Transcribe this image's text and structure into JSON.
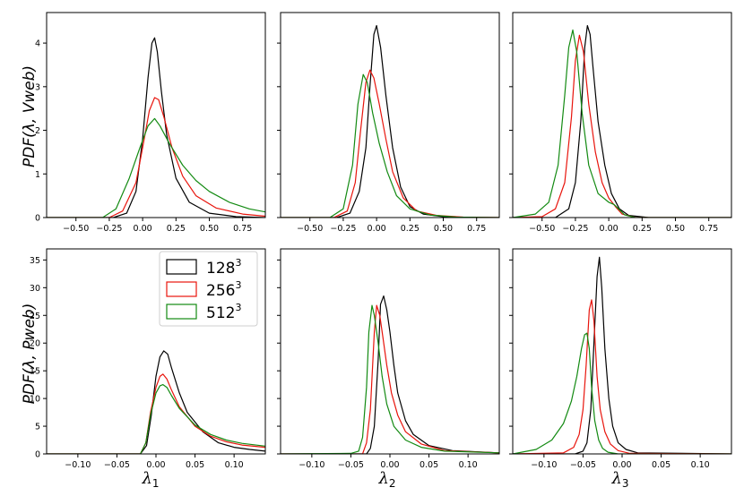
{
  "colors": {
    "128": "#000000",
    "256": "#e8140c",
    "512": "#138a12"
  },
  "legend": {
    "entries": [
      {
        "key": "128",
        "base": "128",
        "exp": "3"
      },
      {
        "key": "256",
        "base": "256",
        "exp": "3"
      },
      {
        "key": "512",
        "base": "512",
        "exp": "3"
      }
    ]
  },
  "row_labels": [
    "PDF(λ, Vweb)",
    "PDF(λ, Pweb)"
  ],
  "col_labels": [
    {
      "sym": "λ",
      "sub": "1"
    },
    {
      "sym": "λ",
      "sub": "2"
    },
    {
      "sym": "λ",
      "sub": "3"
    }
  ],
  "chart_data": [
    {
      "type": "line",
      "title": "",
      "row": 0,
      "col": 0,
      "ylabel": "PDF(λ, Vweb)",
      "xlabel": "",
      "xlim": [
        -0.72,
        0.92
      ],
      "ylim": [
        0,
        4.7
      ],
      "xticks": [
        -0.5,
        -0.25,
        0,
        0.25,
        0.5,
        0.75
      ],
      "xticklabels": [
        "−0.50",
        "−0.25",
        "0.00",
        "0.25",
        "0.50",
        "0.75"
      ],
      "yticks": [
        0,
        1,
        2,
        3,
        4
      ],
      "yticklabels": [
        "0",
        "1",
        "2",
        "3",
        "4"
      ],
      "series": [
        {
          "name": "128³",
          "key": "128",
          "x": [
            -0.72,
            -0.22,
            -0.12,
            -0.05,
            0.0,
            0.04,
            0.07,
            0.09,
            0.11,
            0.14,
            0.18,
            0.25,
            0.35,
            0.5,
            0.7,
            0.92
          ],
          "y": [
            0,
            0,
            0.1,
            0.6,
            1.8,
            3.2,
            4.0,
            4.12,
            3.8,
            2.9,
            1.9,
            0.9,
            0.35,
            0.1,
            0.02,
            0
          ]
        },
        {
          "name": "256³",
          "key": "256",
          "x": [
            -0.72,
            -0.25,
            -0.15,
            -0.05,
            0.0,
            0.05,
            0.09,
            0.12,
            0.16,
            0.22,
            0.3,
            0.4,
            0.55,
            0.75,
            0.92
          ],
          "y": [
            0,
            0,
            0.15,
            0.8,
            1.6,
            2.45,
            2.75,
            2.7,
            2.3,
            1.6,
            0.95,
            0.5,
            0.22,
            0.08,
            0.03
          ]
        },
        {
          "name": "512³",
          "key": "512",
          "x": [
            -0.72,
            -0.3,
            -0.2,
            -0.1,
            -0.02,
            0.04,
            0.09,
            0.13,
            0.2,
            0.3,
            0.4,
            0.5,
            0.65,
            0.8,
            0.92
          ],
          "y": [
            0,
            0,
            0.2,
            0.9,
            1.6,
            2.1,
            2.27,
            2.1,
            1.7,
            1.2,
            0.85,
            0.6,
            0.35,
            0.2,
            0.13
          ]
        }
      ]
    },
    {
      "type": "line",
      "title": "",
      "row": 0,
      "col": 1,
      "ylabel": "",
      "xlabel": "",
      "xlim": [
        -0.72,
        0.92
      ],
      "ylim": [
        0,
        4.7
      ],
      "xticks": [
        -0.5,
        -0.25,
        0,
        0.25,
        0.5,
        0.75
      ],
      "xticklabels": [
        "−0.50",
        "−0.25",
        "0.00",
        "0.25",
        "0.50",
        "0.75"
      ],
      "yticks": [
        0,
        1,
        2,
        3,
        4
      ],
      "yticklabels": [],
      "series": [
        {
          "name": "128³",
          "key": "128",
          "x": [
            -0.72,
            -0.3,
            -0.2,
            -0.13,
            -0.08,
            -0.05,
            -0.02,
            0.0,
            0.03,
            0.07,
            0.12,
            0.18,
            0.25,
            0.35,
            0.5,
            0.7,
            0.92
          ],
          "y": [
            0,
            0,
            0.1,
            0.6,
            1.6,
            3.0,
            4.2,
            4.4,
            3.9,
            2.8,
            1.6,
            0.7,
            0.25,
            0.08,
            0.02,
            0,
            0
          ]
        },
        {
          "name": "256³",
          "key": "256",
          "x": [
            -0.72,
            -0.32,
            -0.22,
            -0.16,
            -0.12,
            -0.08,
            -0.05,
            -0.02,
            0.02,
            0.07,
            0.12,
            0.2,
            0.3,
            0.45,
            0.65,
            0.92
          ],
          "y": [
            0,
            0,
            0.15,
            0.8,
            2.0,
            3.1,
            3.38,
            3.2,
            2.6,
            1.8,
            1.05,
            0.45,
            0.15,
            0.05,
            0.01,
            0
          ]
        },
        {
          "name": "512³",
          "key": "512",
          "x": [
            -0.72,
            -0.35,
            -0.25,
            -0.18,
            -0.14,
            -0.1,
            -0.07,
            -0.03,
            0.02,
            0.08,
            0.15,
            0.25,
            0.4,
            0.6,
            0.92
          ],
          "y": [
            0,
            0,
            0.2,
            1.2,
            2.6,
            3.28,
            3.1,
            2.4,
            1.7,
            1.05,
            0.5,
            0.2,
            0.06,
            0.01,
            0
          ]
        }
      ]
    },
    {
      "type": "line",
      "title": "",
      "row": 0,
      "col": 2,
      "ylabel": "",
      "xlabel": "",
      "xlim": [
        -0.72,
        0.92
      ],
      "ylim": [
        0,
        4.7
      ],
      "xticks": [
        -0.5,
        -0.25,
        0,
        0.25,
        0.5,
        0.75
      ],
      "xticklabels": [
        "−0.50",
        "−0.25",
        "0.00",
        "0.25",
        "0.50",
        "0.75"
      ],
      "yticks": [
        0,
        1,
        2,
        3,
        4
      ],
      "yticklabels": [],
      "series": [
        {
          "name": "128³",
          "key": "128",
          "x": [
            -0.72,
            -0.4,
            -0.3,
            -0.25,
            -0.21,
            -0.18,
            -0.16,
            -0.14,
            -0.12,
            -0.08,
            -0.03,
            0.02,
            0.08,
            0.15,
            0.3,
            0.92
          ],
          "y": [
            0,
            0,
            0.2,
            0.8,
            2.2,
            3.9,
            4.4,
            4.2,
            3.5,
            2.2,
            1.2,
            0.55,
            0.2,
            0.05,
            0,
            0
          ]
        },
        {
          "name": "256³",
          "key": "256",
          "x": [
            -0.72,
            -0.5,
            -0.4,
            -0.33,
            -0.28,
            -0.25,
            -0.22,
            -0.19,
            -0.15,
            -0.1,
            -0.05,
            0.0,
            0.05,
            0.1,
            0.2,
            0.92
          ],
          "y": [
            0,
            0.02,
            0.2,
            0.8,
            2.3,
            3.6,
            4.18,
            3.8,
            2.6,
            1.5,
            0.8,
            0.45,
            0.25,
            0.08,
            0,
            0
          ]
        },
        {
          "name": "512³",
          "key": "512",
          "x": [
            -0.72,
            -0.55,
            -0.45,
            -0.38,
            -0.33,
            -0.3,
            -0.27,
            -0.24,
            -0.2,
            -0.15,
            -0.08,
            0.0,
            0.04,
            0.08,
            0.12,
            0.2,
            0.92
          ],
          "y": [
            0,
            0.08,
            0.35,
            1.2,
            2.8,
            3.9,
            4.3,
            3.8,
            2.4,
            1.2,
            0.55,
            0.35,
            0.3,
            0.18,
            0.06,
            0,
            0
          ]
        }
      ]
    },
    {
      "type": "line",
      "title": "",
      "row": 1,
      "col": 0,
      "ylabel": "PDF(λ, Pweb)",
      "xlabel": "λ1",
      "xlim": [
        -0.14,
        0.14
      ],
      "ylim": [
        0,
        37
      ],
      "xticks": [
        -0.1,
        -0.05,
        0,
        0.05,
        0.1
      ],
      "xticklabels": [
        "−0.10",
        "−0.05",
        "0.00",
        "0.05",
        "0.10"
      ],
      "yticks": [
        0,
        5,
        10,
        15,
        20,
        25,
        30,
        35
      ],
      "yticklabels": [
        "0",
        "5",
        "10",
        "15",
        "20",
        "25",
        "30",
        "35"
      ],
      "series": [
        {
          "name": "128³",
          "key": "128",
          "x": [
            -0.14,
            -0.02,
            -0.012,
            -0.006,
            0.0,
            0.005,
            0.01,
            0.015,
            0.02,
            0.03,
            0.04,
            0.06,
            0.08,
            0.1,
            0.12,
            0.14
          ],
          "y": [
            0,
            0,
            1.5,
            7,
            14,
            17.5,
            18.6,
            18.0,
            15.5,
            11,
            7.5,
            4,
            2,
            1.2,
            0.8,
            0.5
          ]
        },
        {
          "name": "256³",
          "key": "256",
          "x": [
            -0.14,
            -0.02,
            -0.013,
            -0.007,
            0.0,
            0.005,
            0.009,
            0.014,
            0.02,
            0.03,
            0.05,
            0.07,
            0.09,
            0.11,
            0.14
          ],
          "y": [
            0,
            0,
            2,
            7.5,
            12,
            14,
            14.4,
            13.5,
            11.5,
            8.5,
            5,
            3.2,
            2.2,
            1.6,
            1.2
          ]
        },
        {
          "name": "512³",
          "key": "512",
          "x": [
            -0.14,
            -0.02,
            -0.013,
            -0.007,
            0.0,
            0.005,
            0.009,
            0.014,
            0.02,
            0.03,
            0.05,
            0.07,
            0.09,
            0.11,
            0.14
          ],
          "y": [
            0,
            0,
            2,
            7,
            11,
            12.3,
            12.5,
            12,
            10.5,
            8.2,
            5.2,
            3.5,
            2.5,
            1.9,
            1.4
          ]
        }
      ]
    },
    {
      "type": "line",
      "title": "",
      "row": 1,
      "col": 1,
      "ylabel": "",
      "xlabel": "λ2",
      "xlim": [
        -0.14,
        0.14
      ],
      "ylim": [
        0,
        37
      ],
      "xticks": [
        -0.1,
        -0.05,
        0,
        0.05,
        0.1
      ],
      "xticklabels": [
        "−0.10",
        "−0.05",
        "0.00",
        "0.05",
        "0.10"
      ],
      "yticks": [
        0,
        5,
        10,
        15,
        20,
        25,
        30,
        35
      ],
      "yticklabels": [],
      "series": [
        {
          "name": "128³",
          "key": "128",
          "x": [
            -0.14,
            -0.03,
            -0.025,
            -0.02,
            -0.015,
            -0.012,
            -0.008,
            -0.004,
            0.0,
            0.005,
            0.01,
            0.02,
            0.03,
            0.05,
            0.08,
            0.14
          ],
          "y": [
            0,
            0,
            1,
            5,
            17,
            27,
            28.5,
            26,
            22,
            16,
            11,
            6,
            3.5,
            1.5,
            0.6,
            0.2
          ]
        },
        {
          "name": "256³",
          "key": "256",
          "x": [
            -0.14,
            -0.035,
            -0.03,
            -0.025,
            -0.02,
            -0.017,
            -0.013,
            -0.009,
            -0.004,
            0.002,
            0.01,
            0.02,
            0.04,
            0.07,
            0.14
          ],
          "y": [
            0,
            0,
            2,
            8,
            22,
            26.8,
            25,
            21,
            16,
            11,
            7,
            4,
            1.8,
            0.6,
            0.2
          ]
        },
        {
          "name": "512³",
          "key": "512",
          "x": [
            -0.14,
            -0.05,
            -0.04,
            -0.035,
            -0.03,
            -0.027,
            -0.023,
            -0.02,
            -0.015,
            -0.01,
            -0.004,
            0.005,
            0.02,
            0.04,
            0.07,
            0.14
          ],
          "y": [
            0,
            0.1,
            0.5,
            3,
            12,
            22,
            26.8,
            25,
            20,
            14,
            9,
            5,
            2.5,
            1.2,
            0.5,
            0.2
          ]
        }
      ]
    },
    {
      "type": "line",
      "title": "",
      "row": 1,
      "col": 2,
      "ylabel": "",
      "xlabel": "λ3",
      "xlim": [
        -0.14,
        0.14
      ],
      "ylim": [
        0,
        37
      ],
      "xticks": [
        -0.1,
        -0.05,
        0,
        0.05,
        0.1
      ],
      "xticklabels": [
        "−0.10",
        "−0.05",
        "0.00",
        "0.05",
        "0.10"
      ],
      "yticks": [
        0,
        5,
        10,
        15,
        20,
        25,
        30,
        35
      ],
      "yticklabels": [],
      "series": [
        {
          "name": "128³",
          "key": "128",
          "x": [
            -0.14,
            -0.06,
            -0.05,
            -0.045,
            -0.04,
            -0.036,
            -0.032,
            -0.029,
            -0.026,
            -0.022,
            -0.017,
            -0.012,
            -0.005,
            0.005,
            0.02,
            0.14
          ],
          "y": [
            0,
            0,
            0.5,
            2,
            8,
            20,
            32,
            35.5,
            30,
            19,
            10,
            5,
            2,
            0.8,
            0.2,
            0
          ]
        },
        {
          "name": "256³",
          "key": "256",
          "x": [
            -0.14,
            -0.075,
            -0.062,
            -0.055,
            -0.05,
            -0.046,
            -0.042,
            -0.039,
            -0.036,
            -0.032,
            -0.028,
            -0.022,
            -0.015,
            -0.005,
            0.01,
            0.14
          ],
          "y": [
            0,
            0.2,
            1.2,
            3.5,
            8,
            16,
            26,
            27.8,
            24,
            14,
            8,
            4,
            1.8,
            0.6,
            0.1,
            0
          ]
        },
        {
          "name": "512³",
          "key": "512",
          "x": [
            -0.14,
            -0.11,
            -0.09,
            -0.075,
            -0.065,
            -0.058,
            -0.052,
            -0.048,
            -0.045,
            -0.042,
            -0.039,
            -0.035,
            -0.03,
            -0.025,
            -0.018,
            -0.005,
            0.14
          ],
          "y": [
            0,
            0.8,
            2.5,
            5.5,
            9.5,
            14,
            19,
            21.5,
            21.8,
            19,
            12,
            6,
            2.5,
            1,
            0.3,
            0,
            0
          ]
        }
      ]
    }
  ]
}
